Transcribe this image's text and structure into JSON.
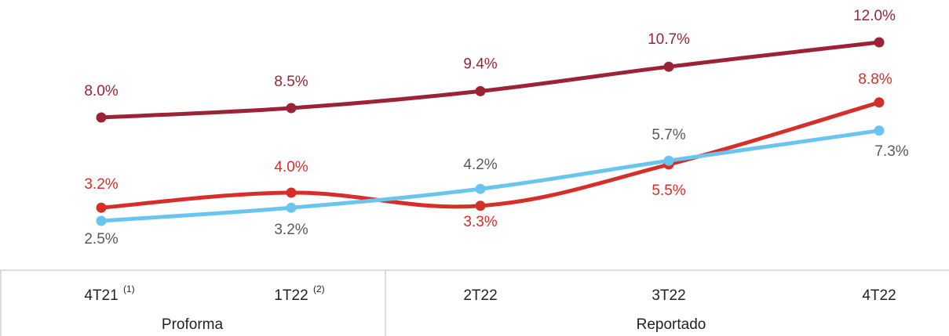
{
  "chart_data": {
    "type": "line",
    "categories": [
      "4T21",
      "1T22",
      "2T22",
      "3T22",
      "4T22"
    ],
    "category_notes": [
      "(1)",
      "(2)",
      null,
      null,
      null
    ],
    "groups": [
      "Proforma",
      "Reportado"
    ],
    "ylim": [
      0,
      14.25
    ],
    "series": [
      {
        "color": "#9b2335",
        "label_color": "#9b2335",
        "values": [
          8.0,
          8.5,
          9.4,
          10.7,
          12.0
        ],
        "value_labels": [
          "8.0%",
          "8.5%",
          "9.4%",
          "10.7%",
          "12.0%"
        ]
      },
      {
        "color": "#d62f2a",
        "label_color": "#d62f2a",
        "values": [
          3.2,
          4.0,
          3.3,
          5.5,
          8.8
        ],
        "value_labels": [
          "3.2%",
          "4.0%",
          "3.3%",
          "5.5%",
          "8.8%"
        ]
      },
      {
        "color": "#6ac5ee",
        "label_color": "#595959",
        "values": [
          2.5,
          3.2,
          4.2,
          5.7,
          7.3
        ],
        "value_labels": [
          "2.5%",
          "3.2%",
          "4.2%",
          "5.7%",
          "7.3%"
        ]
      }
    ]
  }
}
